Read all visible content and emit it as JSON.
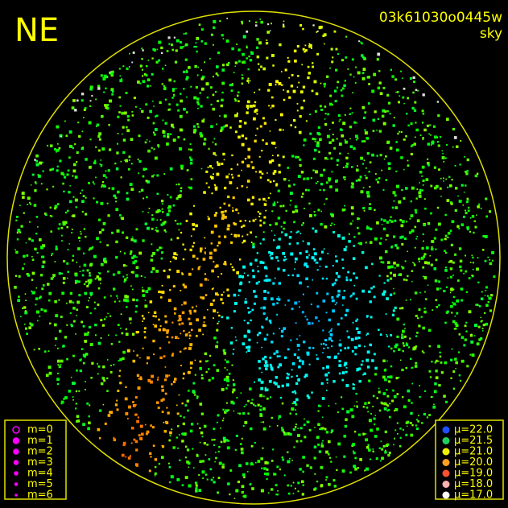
{
  "header": {
    "direction": "NE",
    "image_id": "03k61030o0445w",
    "mode": "sky"
  },
  "magnitude_legend": {
    "color": "#ff00ff",
    "items": [
      "m=0",
      "m=1",
      "m=2",
      "m=3",
      "m=4",
      "m=5",
      "m=6"
    ]
  },
  "sky_legend": {
    "items": [
      {
        "label": "μ=22.0",
        "color": "#1e50ff"
      },
      {
        "label": "μ=21.5",
        "color": "#20d060"
      },
      {
        "label": "μ=21.0",
        "color": "#f0f000"
      },
      {
        "label": "μ=20.0",
        "color": "#ffa020"
      },
      {
        "label": "μ=19.0",
        "color": "#ff5030"
      },
      {
        "label": "μ=18.0",
        "color": "#ffb0b0"
      },
      {
        "label": "μ=17.0",
        "color": "#ffffff"
      }
    ]
  }
}
